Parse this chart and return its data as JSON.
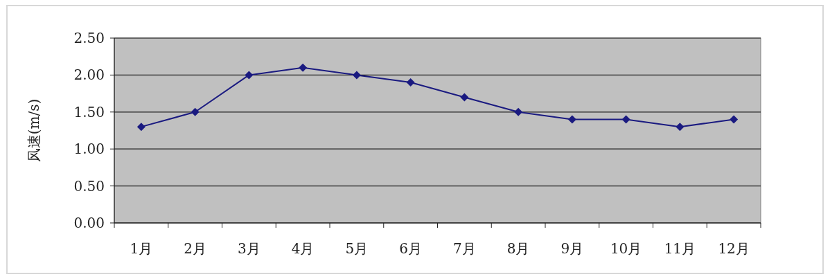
{
  "chart_data": {
    "type": "line",
    "ylabel": "风速(m/s)",
    "categories": [
      "1月",
      "2月",
      "3月",
      "4月",
      "5月",
      "6月",
      "7月",
      "8月",
      "9月",
      "10月",
      "11月",
      "12月"
    ],
    "values": [
      1.3,
      1.5,
      2.0,
      2.1,
      2.0,
      1.9,
      1.7,
      1.5,
      1.4,
      1.4,
      1.3,
      1.4
    ],
    "color": "#1a1a80",
    "ylim": [
      0,
      2.5
    ],
    "yticks": [
      {
        "value": 0,
        "label": "0.00"
      },
      {
        "value": 0.5,
        "label": "0.50"
      },
      {
        "value": 1,
        "label": "1.00"
      },
      {
        "value": 1.5,
        "label": "1.50"
      },
      {
        "value": 2,
        "label": "2.00"
      },
      {
        "value": 2.5,
        "label": "2.50"
      }
    ],
    "grid": "y",
    "marker": "diamond"
  }
}
